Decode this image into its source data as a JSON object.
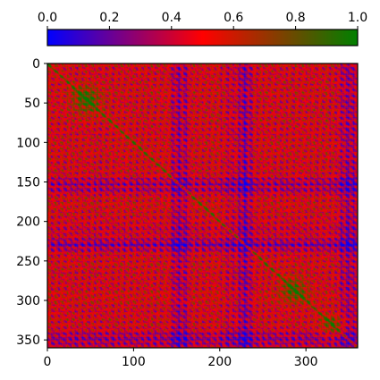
{
  "chart_data": {
    "type": "heatmap",
    "title": "",
    "xlabel": "",
    "ylabel": "",
    "matrix_size": 360,
    "value_range": [
      0,
      1
    ],
    "x_ticks": [
      0,
      100,
      200,
      300
    ],
    "y_ticks": [
      0,
      50,
      100,
      150,
      200,
      250,
      300,
      350
    ],
    "x_tick_labels": [
      "0",
      "100",
      "200",
      "300"
    ],
    "y_tick_labels": [
      "0",
      "50",
      "100",
      "150",
      "200",
      "250",
      "300",
      "350"
    ],
    "colorbar": {
      "orientation": "horizontal",
      "placement": "top",
      "ticks": [
        0.0,
        0.2,
        0.4,
        0.6,
        0.8,
        1.0
      ],
      "tick_labels": [
        "0.0",
        "0.2",
        "0.4",
        "0.6",
        "0.8",
        "1.0"
      ],
      "colors": [
        "#0000ff",
        "#ff0000",
        "#008000"
      ]
    },
    "grid": false
  }
}
